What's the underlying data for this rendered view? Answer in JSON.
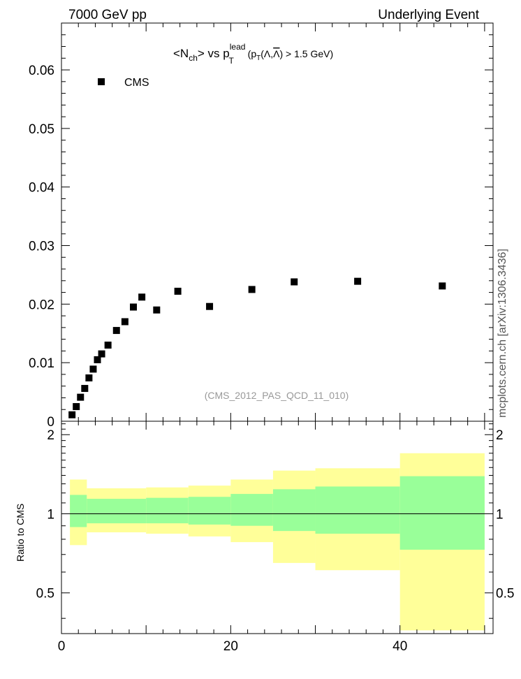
{
  "header": {
    "left": "7000 GeV pp",
    "right": "Underlying Event"
  },
  "side_label": "mcplots.cern.ch [arXiv:1306.3436]",
  "analysis_ref": "(CMS_2012_PAS_QCD_11_010)",
  "title": {
    "main": "<N",
    "main_sub": "ch",
    "middle": "> vs p",
    "middle_sup": "lead",
    "middle_sub": "T",
    "paren_open": " (p",
    "paren_sub": "T",
    "paren_rest_a": "(Λ,",
    "paren_overline": "Λ",
    "paren_rest_b": ") > 1.5 GeV)"
  },
  "colors": {
    "marker": "#000000",
    "band_inner": "#99ff99",
    "band_outer": "#ffff99",
    "ref_text": "#999999"
  },
  "chart_data": [
    {
      "type": "scatter",
      "title": "<Nch> vs pT^lead (pT(Λ,Λ̄) > 1.5 GeV)",
      "xlim": [
        0,
        51
      ],
      "ylim": [
        0,
        0.068
      ],
      "y_ticks": [
        0,
        0.01,
        0.02,
        0.03,
        0.04,
        0.05,
        0.06
      ],
      "y_tick_labels": [
        "0",
        "0.01",
        "0.02",
        "0.03",
        "0.04",
        "0.05",
        "0.06"
      ],
      "legend": {
        "position": "top-left",
        "entries": [
          "CMS"
        ]
      },
      "series": [
        {
          "name": "CMS",
          "marker": "square",
          "x": [
            1.25,
            1.75,
            2.25,
            2.75,
            3.25,
            3.75,
            4.25,
            4.75,
            5.5,
            6.5,
            7.5,
            8.5,
            9.5,
            11.25,
            13.75,
            17.5,
            22.5,
            27.5,
            35,
            45
          ],
          "y": [
            0.0011,
            0.0025,
            0.0041,
            0.0056,
            0.0074,
            0.0089,
            0.0105,
            0.0115,
            0.013,
            0.0155,
            0.017,
            0.0195,
            0.0212,
            0.019,
            0.0222,
            0.0196,
            0.0225,
            0.0238,
            0.0239,
            0.0231
          ]
        }
      ]
    },
    {
      "type": "area",
      "ylabel": "Ratio to CMS",
      "xlim": [
        0,
        51
      ],
      "ylim": [
        0.35,
        2.25
      ],
      "x_ticks": [
        0,
        20,
        40
      ],
      "x_tick_labels": [
        "0",
        "20",
        "40"
      ],
      "y_ticks": [
        0.5,
        1,
        2
      ],
      "y_tick_labels": [
        "0.5",
        "1",
        "2"
      ],
      "reference_line": 1,
      "bins": [
        {
          "lo": 1,
          "hi": 3,
          "inner": [
            0.89,
            1.18
          ],
          "outer": [
            0.76,
            1.35
          ]
        },
        {
          "lo": 3,
          "hi": 10,
          "inner": [
            0.92,
            1.14
          ],
          "outer": [
            0.85,
            1.25
          ]
        },
        {
          "lo": 10,
          "hi": 15,
          "inner": [
            0.92,
            1.15
          ],
          "outer": [
            0.84,
            1.26
          ]
        },
        {
          "lo": 15,
          "hi": 20,
          "inner": [
            0.91,
            1.16
          ],
          "outer": [
            0.82,
            1.28
          ]
        },
        {
          "lo": 20,
          "hi": 25,
          "inner": [
            0.9,
            1.19
          ],
          "outer": [
            0.78,
            1.35
          ]
        },
        {
          "lo": 25,
          "hi": 30,
          "inner": [
            0.86,
            1.24
          ],
          "outer": [
            0.65,
            1.46
          ]
        },
        {
          "lo": 30,
          "hi": 40,
          "inner": [
            0.84,
            1.27
          ],
          "outer": [
            0.61,
            1.49
          ]
        },
        {
          "lo": 40,
          "hi": 50,
          "inner": [
            0.73,
            1.39
          ],
          "outer": [
            0.36,
            1.7
          ]
        }
      ]
    }
  ]
}
